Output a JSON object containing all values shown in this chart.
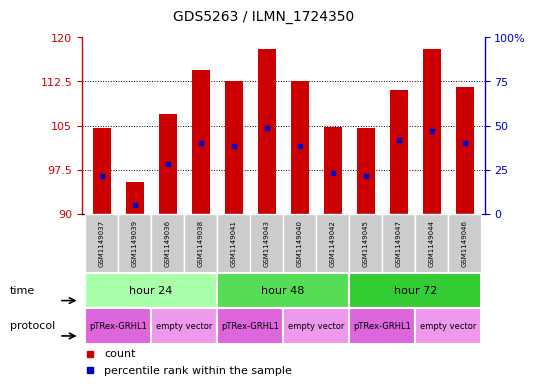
{
  "title": "GDS5263 / ILMN_1724350",
  "samples": [
    "GSM1149037",
    "GSM1149039",
    "GSM1149036",
    "GSM1149038",
    "GSM1149041",
    "GSM1149043",
    "GSM1149040",
    "GSM1149042",
    "GSM1149045",
    "GSM1149047",
    "GSM1149044",
    "GSM1149046"
  ],
  "bar_tops": [
    104.5,
    95.5,
    107.0,
    114.5,
    112.5,
    118.0,
    112.5,
    104.8,
    104.5,
    111.0,
    118.0,
    111.5
  ],
  "bar_bottoms": [
    90,
    90,
    90,
    90,
    90,
    90,
    90,
    90,
    90,
    90,
    90,
    90
  ],
  "percentile_values": [
    96.5,
    91.5,
    98.5,
    102.0,
    101.5,
    104.5,
    101.5,
    97.0,
    96.5,
    102.5,
    104.0,
    102.0
  ],
  "bar_color": "#cc0000",
  "percentile_color": "#0000cc",
  "ylim_left": [
    90,
    120
  ],
  "ylim_right": [
    0,
    100
  ],
  "yticks_left": [
    90,
    97.5,
    105,
    112.5,
    120
  ],
  "yticks_left_labels": [
    "90",
    "97.5",
    "105",
    "112.5",
    "120"
  ],
  "yticks_right": [
    0,
    25,
    50,
    75,
    100
  ],
  "yticks_right_labels": [
    "0",
    "25",
    "50",
    "75",
    "100%"
  ],
  "time_groups": [
    {
      "label": "hour 24",
      "start": 0,
      "end": 4,
      "color": "#aaffaa"
    },
    {
      "label": "hour 48",
      "start": 4,
      "end": 8,
      "color": "#55dd55"
    },
    {
      "label": "hour 72",
      "start": 8,
      "end": 12,
      "color": "#33cc33"
    }
  ],
  "protocol_groups": [
    {
      "label": "pTRex-GRHL1",
      "start": 0,
      "end": 2,
      "color": "#dd66dd"
    },
    {
      "label": "empty vector",
      "start": 2,
      "end": 4,
      "color": "#ee99ee"
    },
    {
      "label": "pTRex-GRHL1",
      "start": 4,
      "end": 6,
      "color": "#dd66dd"
    },
    {
      "label": "empty vector",
      "start": 6,
      "end": 8,
      "color": "#ee99ee"
    },
    {
      "label": "pTRex-GRHL1",
      "start": 8,
      "end": 10,
      "color": "#dd66dd"
    },
    {
      "label": "empty vector",
      "start": 10,
      "end": 12,
      "color": "#ee99ee"
    }
  ],
  "bg_color": "#ffffff",
  "label_color_left": "#cc0000",
  "label_color_right": "#0000cc",
  "bar_width": 0.55,
  "sample_cell_color": "#cccccc",
  "grid_color": "#333333",
  "time_label": "time",
  "protocol_label": "protocol"
}
